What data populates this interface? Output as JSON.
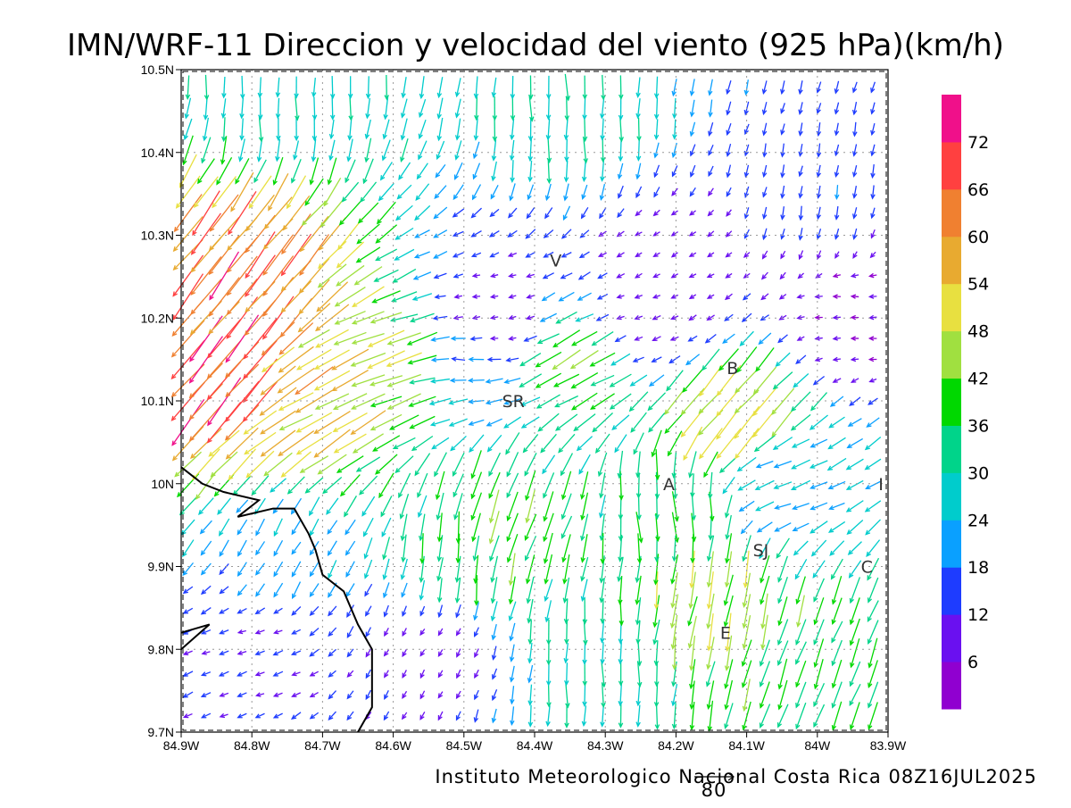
{
  "chart_data": {
    "type": "vector-field",
    "title": "IMN/WRF-11 Direccion y velocidad del viento (925 hPa)(km/h)",
    "footer": "Instituto Meteorologico Nacional Costa Rica 08Z16JUL2025",
    "reference_vector_label": "80",
    "x_range": [
      -84.9,
      -83.9
    ],
    "y_range": [
      9.7,
      10.5
    ],
    "x_ticks": [
      {
        "value": -84.9,
        "label": "84.9W"
      },
      {
        "value": -84.8,
        "label": "84.8W"
      },
      {
        "value": -84.7,
        "label": "84.7W"
      },
      {
        "value": -84.6,
        "label": "84.6W"
      },
      {
        "value": -84.5,
        "label": "84.5W"
      },
      {
        "value": -84.4,
        "label": "84.4W"
      },
      {
        "value": -84.3,
        "label": "84.3W"
      },
      {
        "value": -84.2,
        "label": "84.2W"
      },
      {
        "value": -84.1,
        "label": "84.1W"
      },
      {
        "value": -84.0,
        "label": "84W"
      },
      {
        "value": -83.9,
        "label": "83.9W"
      }
    ],
    "y_ticks": [
      {
        "value": 9.7,
        "label": "9.7N"
      },
      {
        "value": 9.8,
        "label": "9.8N"
      },
      {
        "value": 9.9,
        "label": "9.9N"
      },
      {
        "value": 10.0,
        "label": "10N"
      },
      {
        "value": 10.1,
        "label": "10.1N"
      },
      {
        "value": 10.2,
        "label": "10.2N"
      },
      {
        "value": 10.3,
        "label": "10.3N"
      },
      {
        "value": 10.4,
        "label": "10.4N"
      },
      {
        "value": 10.5,
        "label": "10.5N"
      }
    ],
    "grid": true,
    "colorbar": {
      "labels": [
        "6",
        "12",
        "18",
        "24",
        "30",
        "36",
        "42",
        "48",
        "54",
        "60",
        "66",
        "72"
      ],
      "colors": [
        "#9000d0",
        "#6a10f0",
        "#1e3cff",
        "#0aa0ff",
        "#00cccc",
        "#00d48a",
        "#00d800",
        "#a0e040",
        "#e8e040",
        "#e8aa30",
        "#f08030",
        "#ff4040",
        "#f0108a"
      ],
      "max": 78
    },
    "places": [
      {
        "label": "V",
        "lon": -84.37,
        "lat": 10.27
      },
      {
        "label": "SR",
        "lon": -84.43,
        "lat": 10.1
      },
      {
        "label": "B",
        "lon": -84.12,
        "lat": 10.14
      },
      {
        "label": "A",
        "lon": -84.21,
        "lat": 10.0
      },
      {
        "label": "I",
        "lon": -83.91,
        "lat": 10.0
      },
      {
        "label": "SJ",
        "lon": -84.08,
        "lat": 9.92
      },
      {
        "label": "C",
        "lon": -83.93,
        "lat": 9.9
      },
      {
        "label": "E",
        "lon": -84.13,
        "lat": 9.82
      }
    ],
    "coastline": [
      [
        -84.9,
        10.02
      ],
      [
        -84.87,
        10.0
      ],
      [
        -84.84,
        9.99
      ],
      [
        -84.79,
        9.98
      ],
      [
        -84.82,
        9.96
      ],
      [
        -84.77,
        9.97
      ],
      [
        -84.74,
        9.97
      ],
      [
        -84.72,
        9.94
      ],
      [
        -84.71,
        9.92
      ],
      [
        -84.7,
        9.89
      ],
      [
        -84.67,
        9.87
      ],
      [
        -84.65,
        9.83
      ],
      [
        -84.63,
        9.8
      ],
      [
        -84.63,
        9.73
      ],
      [
        -84.65,
        9.7
      ]
    ],
    "coastline_island": [
      [
        -84.9,
        9.82
      ],
      [
        -84.86,
        9.83
      ],
      [
        -84.9,
        9.8
      ]
    ],
    "vectors": [
      {
        "lon": -84.75,
        "lat": 10.48,
        "dir": 270,
        "spd": 28
      },
      {
        "lon": -84.35,
        "lat": 10.45,
        "dir": 270,
        "spd": 30
      },
      {
        "lon": -84.8,
        "lat": 10.25,
        "dir": 232,
        "spd": 64
      },
      {
        "lon": -84.82,
        "lat": 10.13,
        "dir": 230,
        "spd": 68
      },
      {
        "lon": -84.72,
        "lat": 10.1,
        "dir": 210,
        "spd": 54
      },
      {
        "lon": -84.6,
        "lat": 10.15,
        "dir": 200,
        "spd": 48
      },
      {
        "lon": -84.5,
        "lat": 10.15,
        "dir": 180,
        "spd": 20
      },
      {
        "lon": -84.46,
        "lat": 10.2,
        "dir": 190,
        "spd": 6
      },
      {
        "lon": -84.34,
        "lat": 10.15,
        "dir": 210,
        "spd": 40
      },
      {
        "lon": -84.25,
        "lat": 10.2,
        "dir": 200,
        "spd": 10
      },
      {
        "lon": -84.2,
        "lat": 10.25,
        "dir": 210,
        "spd": 8
      },
      {
        "lon": -84.12,
        "lat": 10.08,
        "dir": 230,
        "spd": 50
      },
      {
        "lon": -84.05,
        "lat": 10.0,
        "dir": 200,
        "spd": 24
      },
      {
        "lon": -84.2,
        "lat": 9.97,
        "dir": 275,
        "spd": 36
      },
      {
        "lon": -84.45,
        "lat": 9.95,
        "dir": 250,
        "spd": 40
      },
      {
        "lon": -84.5,
        "lat": 9.92,
        "dir": 265,
        "spd": 36
      },
      {
        "lon": -84.75,
        "lat": 9.92,
        "dir": 240,
        "spd": 22
      },
      {
        "lon": -84.8,
        "lat": 9.8,
        "dir": 200,
        "spd": 12
      },
      {
        "lon": -84.55,
        "lat": 9.8,
        "dir": 240,
        "spd": 10
      },
      {
        "lon": -84.3,
        "lat": 9.78,
        "dir": 270,
        "spd": 30
      },
      {
        "lon": -84.15,
        "lat": 9.86,
        "dir": 260,
        "spd": 46
      },
      {
        "lon": -84.0,
        "lat": 9.78,
        "dir": 250,
        "spd": 36
      },
      {
        "lon": -83.95,
        "lat": 10.2,
        "dir": 180,
        "spd": 6
      },
      {
        "lon": -84.0,
        "lat": 10.35,
        "dir": 260,
        "spd": 16
      }
    ]
  }
}
